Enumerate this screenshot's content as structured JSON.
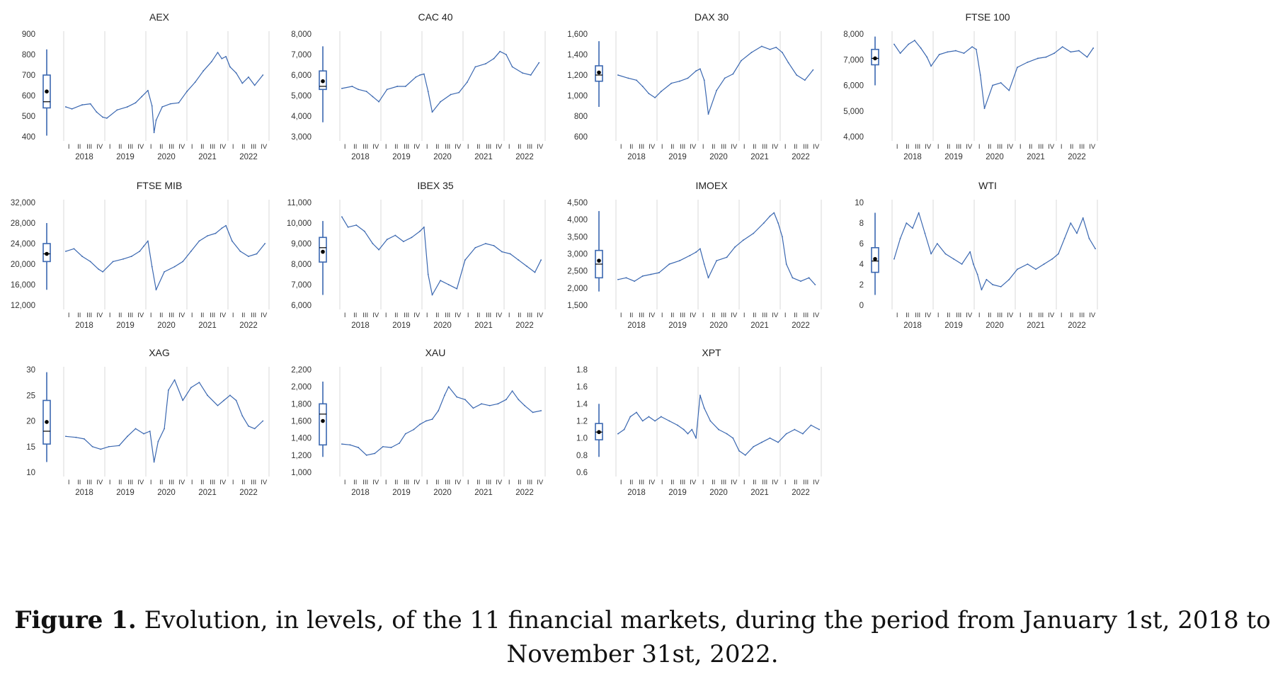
{
  "figure": {
    "caption_label": "Figure 1.",
    "caption_text": " Evolution, in levels, of the 11 financial markets, during the period from January 1st, 2018 to November 31st, 2022."
  },
  "quarters": [
    "I",
    "II",
    "III",
    "IV"
  ],
  "years": [
    "2018",
    "2019",
    "2020",
    "2021",
    "2022"
  ],
  "colors": {
    "series": "#3a67b0",
    "box": "#3a67b0",
    "mean": "#000000",
    "grid": "#d9d9d9"
  },
  "chart_data": [
    {
      "type": "line",
      "title": "AEX",
      "ylim": [
        400,
        900
      ],
      "yticks": [
        "400",
        "500",
        "600",
        "700",
        "800",
        "900"
      ],
      "box": {
        "whisker_low": 405,
        "q1": 540,
        "median": 570,
        "q3": 700,
        "whisker_high": 825,
        "mean": 620
      },
      "series": [
        {
          "x_years": [
            2018.05,
            2018.2,
            2018.45,
            2018.65,
            2018.8,
            2018.95,
            2019.05,
            2019.3,
            2019.55,
            2019.75,
            2019.9,
            2020.05,
            2020.15,
            2020.2,
            2020.25,
            2020.4,
            2020.6,
            2020.8,
            2021.0,
            2021.2,
            2021.4,
            2021.6,
            2021.75,
            2021.85,
            2021.95,
            2022.05,
            2022.2,
            2022.35,
            2022.5,
            2022.65,
            2022.85
          ],
          "y": [
            545,
            535,
            555,
            560,
            520,
            495,
            490,
            530,
            545,
            565,
            595,
            625,
            550,
            420,
            480,
            545,
            560,
            565,
            620,
            665,
            720,
            765,
            810,
            780,
            790,
            740,
            710,
            660,
            690,
            650,
            700
          ]
        }
      ]
    },
    {
      "type": "line",
      "title": "CAC 40",
      "ylim": [
        3000,
        8000
      ],
      "yticks": [
        "3,000",
        "4,000",
        "5,000",
        "6,000",
        "7,000",
        "8,000"
      ],
      "box": {
        "whisker_low": 3700,
        "q1": 5300,
        "median": 5450,
        "q3": 6200,
        "whisker_high": 7400,
        "mean": 5700
      },
      "series": [
        {
          "x_years": [
            2018.05,
            2018.3,
            2018.45,
            2018.65,
            2018.8,
            2018.95,
            2019.15,
            2019.4,
            2019.6,
            2019.85,
            2019.95,
            2020.05,
            2020.15,
            2020.25,
            2020.45,
            2020.7,
            2020.9,
            2021.1,
            2021.3,
            2021.55,
            2021.75,
            2021.9,
            2022.05,
            2022.2,
            2022.45,
            2022.65,
            2022.85
          ],
          "y": [
            5350,
            5450,
            5300,
            5200,
            4950,
            4700,
            5300,
            5450,
            5450,
            5900,
            6000,
            6050,
            5200,
            4200,
            4700,
            5050,
            5150,
            5650,
            6400,
            6550,
            6800,
            7150,
            7000,
            6400,
            6100,
            6000,
            6600
          ]
        }
      ]
    },
    {
      "type": "line",
      "title": "DAX 30",
      "ylim": [
        600,
        1600
      ],
      "yticks": [
        "600",
        "800",
        "1,000",
        "1,200",
        "1,400",
        "1,600"
      ],
      "box": {
        "whisker_low": 890,
        "q1": 1140,
        "median": 1200,
        "q3": 1290,
        "whisker_high": 1530,
        "mean": 1225
      },
      "series": [
        {
          "x_years": [
            2018.05,
            2018.3,
            2018.5,
            2018.65,
            2018.8,
            2018.95,
            2019.1,
            2019.35,
            2019.55,
            2019.75,
            2019.95,
            2020.05,
            2020.15,
            2020.25,
            2020.45,
            2020.65,
            2020.85,
            2021.05,
            2021.3,
            2021.55,
            2021.75,
            2021.9,
            2022.05,
            2022.2,
            2022.4,
            2022.6,
            2022.8
          ],
          "y": [
            1200,
            1170,
            1150,
            1090,
            1020,
            980,
            1040,
            1120,
            1140,
            1170,
            1240,
            1260,
            1150,
            820,
            1050,
            1170,
            1210,
            1340,
            1420,
            1480,
            1450,
            1470,
            1420,
            1320,
            1200,
            1150,
            1250
          ]
        }
      ]
    },
    {
      "type": "line",
      "title": "FTSE 100",
      "ylim": [
        4000,
        8000
      ],
      "yticks": [
        "4,000",
        "5,000",
        "6,000",
        "7,000",
        "8,000"
      ],
      "box": {
        "whisker_low": 6000,
        "q1": 6800,
        "median": 7050,
        "q3": 7400,
        "whisker_high": 7900,
        "mean": 7050
      },
      "series": [
        {
          "x_years": [
            2018.05,
            2018.2,
            2018.4,
            2018.55,
            2018.7,
            2018.85,
            2018.95,
            2019.15,
            2019.35,
            2019.55,
            2019.75,
            2019.95,
            2020.05,
            2020.15,
            2020.25,
            2020.45,
            2020.65,
            2020.85,
            2021.05,
            2021.3,
            2021.55,
            2021.75,
            2021.95,
            2022.15,
            2022.35,
            2022.55,
            2022.75,
            2022.9
          ],
          "y": [
            7600,
            7250,
            7600,
            7750,
            7450,
            7100,
            6750,
            7200,
            7300,
            7350,
            7250,
            7500,
            7400,
            6400,
            5100,
            6000,
            6100,
            5800,
            6700,
            6900,
            7050,
            7100,
            7250,
            7500,
            7300,
            7350,
            7100,
            7450
          ]
        }
      ]
    },
    {
      "type": "line",
      "title": "FTSE MIB",
      "ylim": [
        12000,
        32000
      ],
      "yticks": [
        "12,000",
        "16,000",
        "20,000",
        "24,000",
        "28,000",
        "32,000"
      ],
      "box": {
        "whisker_low": 15000,
        "q1": 20500,
        "median": 22000,
        "q3": 24000,
        "whisker_high": 28000,
        "mean": 22000
      },
      "series": [
        {
          "x_years": [
            2018.05,
            2018.25,
            2018.45,
            2018.65,
            2018.85,
            2018.95,
            2019.2,
            2019.45,
            2019.65,
            2019.85,
            2019.95,
            2020.05,
            2020.15,
            2020.25,
            2020.45,
            2020.7,
            2020.9,
            2021.1,
            2021.3,
            2021.5,
            2021.7,
            2021.85,
            2021.95,
            2022.1,
            2022.3,
            2022.5,
            2022.7,
            2022.9
          ],
          "y": [
            22500,
            23000,
            21500,
            20500,
            19000,
            18500,
            20500,
            21000,
            21500,
            22500,
            23500,
            24500,
            19500,
            15000,
            18500,
            19500,
            20500,
            22500,
            24500,
            25500,
            26000,
            27000,
            27500,
            24500,
            22500,
            21500,
            22000,
            24000
          ]
        }
      ]
    },
    {
      "type": "line",
      "title": "IBEX 35",
      "ylim": [
        6000,
        11000
      ],
      "yticks": [
        "6,000",
        "7,000",
        "8,000",
        "9,000",
        "10,000",
        "11,000"
      ],
      "box": {
        "whisker_low": 6500,
        "q1": 8100,
        "median": 8800,
        "q3": 9300,
        "whisker_high": 10100,
        "mean": 8600
      },
      "series": [
        {
          "x_years": [
            2018.05,
            2018.2,
            2018.4,
            2018.6,
            2018.8,
            2018.95,
            2019.15,
            2019.35,
            2019.55,
            2019.75,
            2019.95,
            2020.05,
            2020.15,
            2020.25,
            2020.45,
            2020.65,
            2020.85,
            2021.05,
            2021.3,
            2021.55,
            2021.75,
            2021.95,
            2022.15,
            2022.35,
            2022.55,
            2022.75,
            2022.9
          ],
          "y": [
            10300,
            9800,
            9900,
            9600,
            9000,
            8700,
            9200,
            9400,
            9100,
            9300,
            9600,
            9800,
            7500,
            6500,
            7200,
            7000,
            6800,
            8200,
            8800,
            9000,
            8900,
            8600,
            8500,
            8200,
            7900,
            7600,
            8200
          ]
        }
      ]
    },
    {
      "type": "line",
      "title": "IMOEX",
      "ylim": [
        1500,
        4500
      ],
      "yticks": [
        "1,500",
        "2,000",
        "2,500",
        "3,000",
        "3,500",
        "4,000",
        "4,500"
      ],
      "box": {
        "whisker_low": 1900,
        "q1": 2300,
        "median": 2700,
        "q3": 3100,
        "whisker_high": 4250,
        "mean": 2800
      },
      "series": [
        {
          "x_years": [
            2018.05,
            2018.25,
            2018.45,
            2018.65,
            2018.85,
            2019.05,
            2019.3,
            2019.55,
            2019.8,
            2019.95,
            2020.05,
            2020.15,
            2020.25,
            2020.45,
            2020.7,
            2020.9,
            2021.1,
            2021.35,
            2021.6,
            2021.75,
            2021.85,
            2021.95,
            2022.05,
            2022.15,
            2022.3,
            2022.5,
            2022.7,
            2022.85
          ],
          "y": [
            2250,
            2300,
            2200,
            2350,
            2400,
            2450,
            2700,
            2800,
            2950,
            3050,
            3150,
            2700,
            2300,
            2800,
            2900,
            3200,
            3400,
            3600,
            3900,
            4100,
            4200,
            3900,
            3500,
            2700,
            2300,
            2200,
            2300,
            2100
          ]
        }
      ]
    },
    {
      "type": "line",
      "title": "WTI",
      "ylim": [
        0,
        10
      ],
      "yticks": [
        "0",
        "2",
        "4",
        "6",
        "8",
        "10"
      ],
      "box": {
        "whisker_low": 1,
        "q1": 3.2,
        "median": 4.3,
        "q3": 5.6,
        "whisker_high": 9,
        "mean": 4.5
      },
      "series": [
        {
          "x_years": [
            2018.05,
            2018.2,
            2018.35,
            2018.5,
            2018.65,
            2018.8,
            2018.95,
            2019.1,
            2019.3,
            2019.5,
            2019.7,
            2019.9,
            2019.98,
            2020.08,
            2020.18,
            2020.3,
            2020.45,
            2020.65,
            2020.85,
            2021.05,
            2021.3,
            2021.5,
            2021.7,
            2021.9,
            2022.05,
            2022.2,
            2022.35,
            2022.5,
            2022.65,
            2022.8,
            2022.95
          ],
          "y": [
            4.5,
            6.5,
            8.0,
            7.5,
            9.0,
            7.0,
            5.0,
            6.0,
            5.0,
            4.5,
            4.0,
            5.2,
            4.0,
            3.0,
            1.5,
            2.5,
            2.0,
            1.8,
            2.5,
            3.5,
            4.0,
            3.5,
            4.0,
            4.5,
            5.0,
            6.5,
            8.0,
            7.0,
            8.5,
            6.5,
            5.5
          ]
        }
      ]
    },
    {
      "type": "line",
      "title": "XAG",
      "ylim": [
        10,
        30
      ],
      "yticks": [
        "10",
        "15",
        "20",
        "25",
        "30"
      ],
      "box": {
        "whisker_low": 12,
        "q1": 15.5,
        "median": 18,
        "q3": 24,
        "whisker_high": 29.5,
        "mean": 19.8
      },
      "series": [
        {
          "x_years": [
            2018.05,
            2018.3,
            2018.5,
            2018.7,
            2018.9,
            2019.1,
            2019.35,
            2019.55,
            2019.75,
            2019.95,
            2020.1,
            2020.2,
            2020.3,
            2020.45,
            2020.55,
            2020.7,
            2020.9,
            2021.1,
            2021.3,
            2021.5,
            2021.75,
            2021.9,
            2022.05,
            2022.2,
            2022.35,
            2022.5,
            2022.65,
            2022.85
          ],
          "y": [
            17,
            16.8,
            16.5,
            15,
            14.5,
            15,
            15.2,
            17,
            18.5,
            17.5,
            18,
            12,
            16,
            18.5,
            26,
            28,
            24,
            26.5,
            27.5,
            25,
            23,
            24,
            25,
            24,
            21,
            19,
            18.5,
            20
          ]
        }
      ]
    },
    {
      "type": "line",
      "title": "XAU",
      "ylim": [
        1000,
        2200
      ],
      "yticks": [
        "1,000",
        "1,200",
        "1,400",
        "1,600",
        "1,800",
        "2,000",
        "2,200"
      ],
      "box": {
        "whisker_low": 1180,
        "q1": 1320,
        "median": 1680,
        "q3": 1800,
        "whisker_high": 2060,
        "mean": 1600
      },
      "series": [
        {
          "x_years": [
            2018.05,
            2018.25,
            2018.45,
            2018.65,
            2018.85,
            2019.05,
            2019.25,
            2019.45,
            2019.6,
            2019.8,
            2019.95,
            2020.1,
            2020.25,
            2020.4,
            2020.55,
            2020.65,
            2020.85,
            2021.05,
            2021.25,
            2021.45,
            2021.65,
            2021.85,
            2022.05,
            2022.2,
            2022.35,
            2022.5,
            2022.7,
            2022.9
          ],
          "y": [
            1330,
            1320,
            1290,
            1200,
            1220,
            1300,
            1290,
            1340,
            1450,
            1500,
            1560,
            1600,
            1620,
            1720,
            1900,
            2000,
            1880,
            1850,
            1750,
            1800,
            1780,
            1800,
            1850,
            1950,
            1850,
            1780,
            1700,
            1720
          ]
        }
      ]
    },
    {
      "type": "line",
      "title": "XPT",
      "ylim": [
        0.6,
        1.8
      ],
      "yticks": [
        "0.6",
        "0.8",
        "1.0",
        "1.2",
        "1.4",
        "1.6",
        "1.8"
      ],
      "box": {
        "whisker_low": 0.78,
        "q1": 0.98,
        "median": 1.07,
        "q3": 1.17,
        "whisker_high": 1.4,
        "mean": 1.07
      },
      "series": [
        {
          "x_years": [
            2018.05,
            2018.2,
            2018.35,
            2018.5,
            2018.65,
            2018.8,
            2018.95,
            2019.1,
            2019.3,
            2019.5,
            2019.65,
            2019.75,
            2019.85,
            2019.95,
            2020.05,
            2020.15,
            2020.3,
            2020.5,
            2020.7,
            2020.85,
            2021.0,
            2021.15,
            2021.35,
            2021.55,
            2021.75,
            2021.95,
            2022.15,
            2022.35,
            2022.55,
            2022.75,
            2022.95
          ],
          "y": [
            1.05,
            1.1,
            1.25,
            1.3,
            1.2,
            1.25,
            1.2,
            1.25,
            1.2,
            1.15,
            1.1,
            1.05,
            1.1,
            1.0,
            1.5,
            1.35,
            1.2,
            1.1,
            1.05,
            1.0,
            0.85,
            0.8,
            0.9,
            0.95,
            1.0,
            0.95,
            1.05,
            1.1,
            1.05,
            1.15,
            1.1
          ]
        }
      ]
    }
  ]
}
